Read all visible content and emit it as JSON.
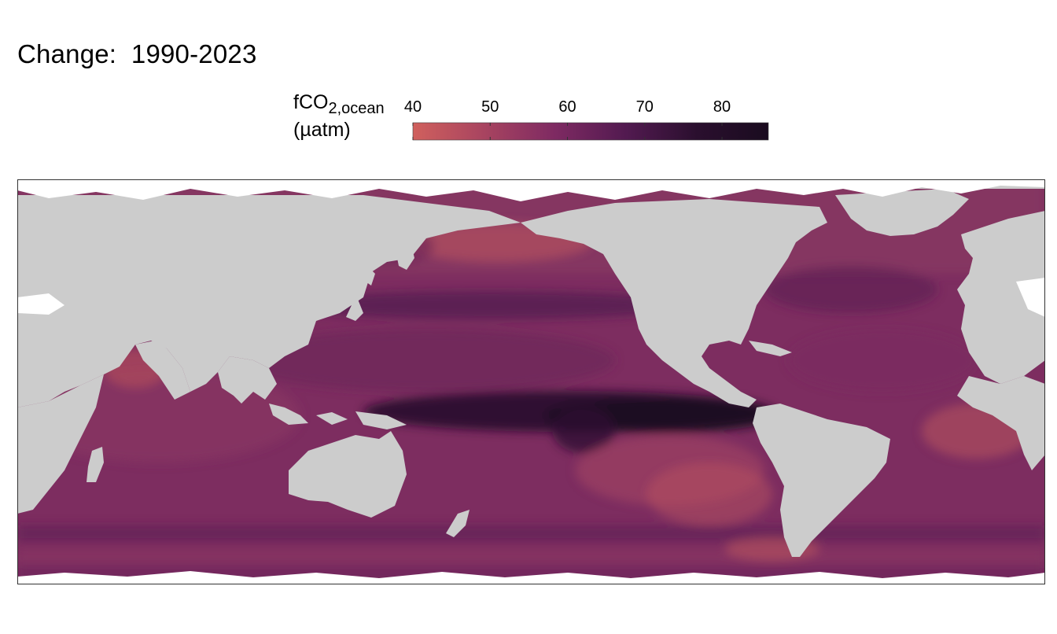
{
  "title": "Change:  1990-2023",
  "legend": {
    "variable": "fCO",
    "subscript": "2,ocean",
    "unit": "(µatm)",
    "ticks": [
      40,
      50,
      60,
      70,
      80
    ],
    "range": [
      40,
      86
    ],
    "colors": [
      "#d0605d",
      "#a84460",
      "#7e2a62",
      "#521a50",
      "#2a0f2e",
      "#1a0b1f"
    ]
  },
  "map": {
    "extent_lon": [
      20,
      380
    ],
    "extent_lat": [
      -78,
      90
    ],
    "land_color": "#cccccc",
    "no_data_color": "#ffffff",
    "frame_color": "#333333"
  }
}
